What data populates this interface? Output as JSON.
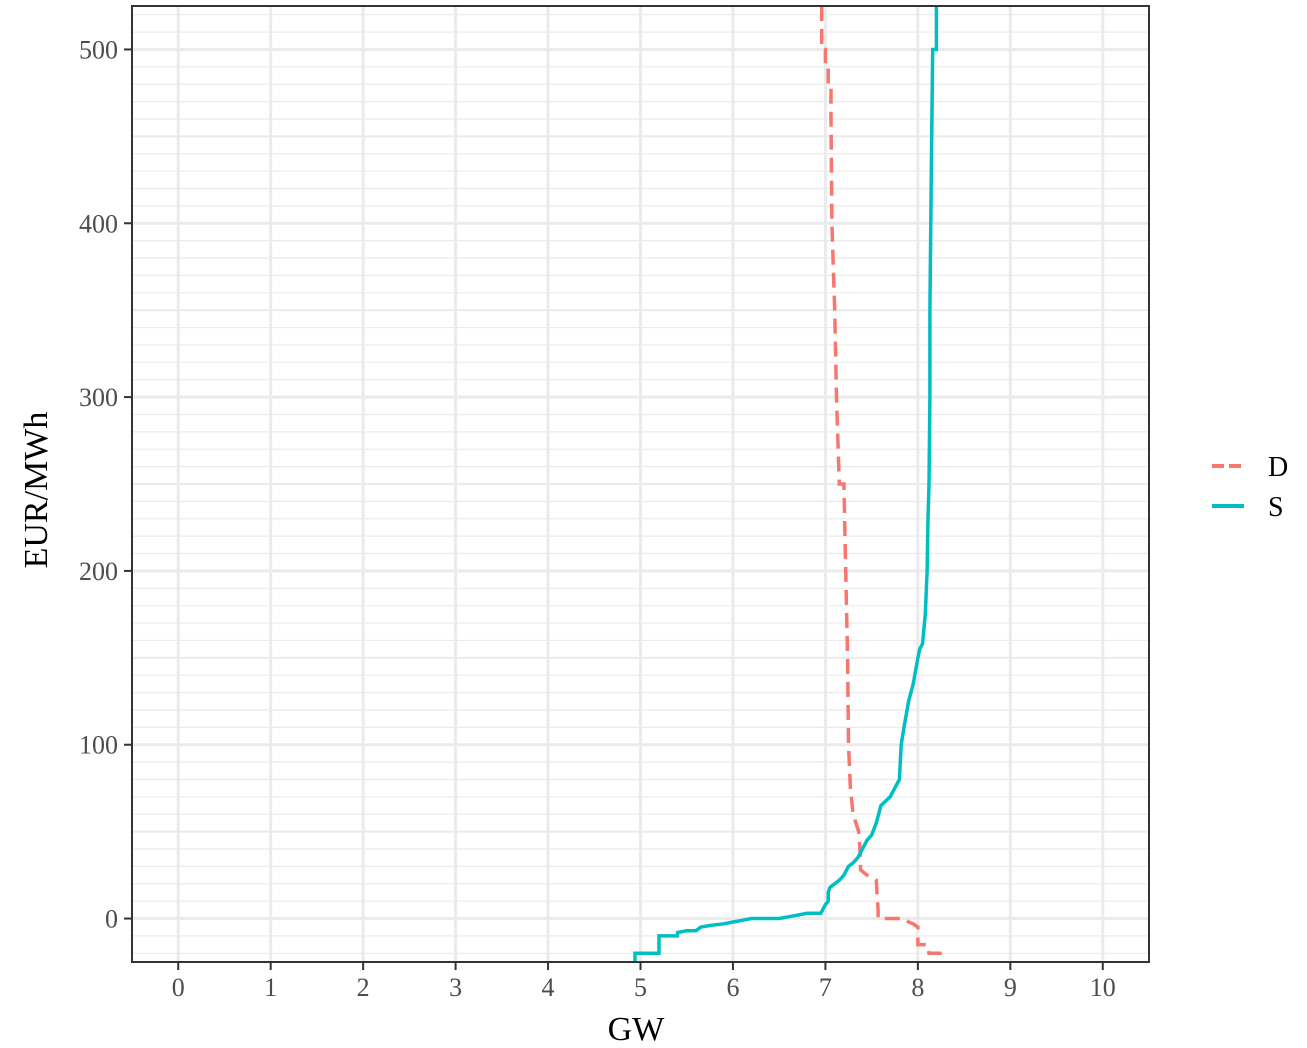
{
  "chart_data": {
    "type": "line",
    "title": "",
    "xlabel": "GW",
    "ylabel": "EUR/MWh",
    "xlim": [
      -0.5,
      10.5
    ],
    "ylim": [
      -25,
      525
    ],
    "x_ticks": [
      0,
      1,
      2,
      3,
      4,
      5,
      6,
      7,
      8,
      9,
      10
    ],
    "y_ticks": [
      0,
      100,
      200,
      300,
      400,
      500
    ],
    "grid": true,
    "legend_position": "right",
    "series": [
      {
        "name": "D",
        "color": "#F8766D",
        "dash": "dashed",
        "points": [
          [
            6.96,
            525
          ],
          [
            6.96,
            500
          ],
          [
            7.0,
            500
          ],
          [
            7.0,
            490
          ],
          [
            7.03,
            490
          ],
          [
            7.03,
            480
          ],
          [
            7.06,
            480
          ],
          [
            7.06,
            460
          ],
          [
            7.07,
            400
          ],
          [
            7.1,
            350
          ],
          [
            7.12,
            300
          ],
          [
            7.15,
            250
          ],
          [
            7.2,
            250
          ],
          [
            7.22,
            200
          ],
          [
            7.24,
            150
          ],
          [
            7.25,
            100
          ],
          [
            7.27,
            75
          ],
          [
            7.3,
            60
          ],
          [
            7.33,
            55
          ],
          [
            7.36,
            50
          ],
          [
            7.38,
            35
          ],
          [
            7.38,
            28
          ],
          [
            7.45,
            25
          ],
          [
            7.55,
            22
          ],
          [
            7.57,
            5
          ],
          [
            7.57,
            0
          ],
          [
            7.85,
            0
          ],
          [
            7.9,
            -2
          ],
          [
            7.95,
            -3
          ],
          [
            8.0,
            -5
          ],
          [
            8.0,
            -15
          ],
          [
            8.1,
            -15
          ],
          [
            8.12,
            -20
          ],
          [
            8.27,
            -20
          ]
        ]
      },
      {
        "name": "S",
        "color": "#00BFC4",
        "dash": "solid",
        "points": [
          [
            4.94,
            -25
          ],
          [
            4.94,
            -20
          ],
          [
            5.2,
            -20
          ],
          [
            5.2,
            -10
          ],
          [
            5.4,
            -10
          ],
          [
            5.4,
            -8
          ],
          [
            5.5,
            -7
          ],
          [
            5.6,
            -7
          ],
          [
            5.65,
            -5
          ],
          [
            5.75,
            -4
          ],
          [
            5.9,
            -3
          ],
          [
            6.0,
            -2
          ],
          [
            6.1,
            -1
          ],
          [
            6.2,
            0
          ],
          [
            6.5,
            0
          ],
          [
            6.6,
            1
          ],
          [
            6.7,
            2
          ],
          [
            6.8,
            3
          ],
          [
            6.95,
            3
          ],
          [
            7.0,
            8
          ],
          [
            7.03,
            10
          ],
          [
            7.03,
            15
          ],
          [
            7.05,
            18
          ],
          [
            7.1,
            20
          ],
          [
            7.15,
            22
          ],
          [
            7.2,
            25
          ],
          [
            7.25,
            30
          ],
          [
            7.3,
            32
          ],
          [
            7.35,
            35
          ],
          [
            7.4,
            40
          ],
          [
            7.45,
            45
          ],
          [
            7.5,
            48
          ],
          [
            7.55,
            55
          ],
          [
            7.6,
            65
          ],
          [
            7.7,
            70
          ],
          [
            7.8,
            80
          ],
          [
            7.82,
            100
          ],
          [
            7.85,
            110
          ],
          [
            7.9,
            125
          ],
          [
            7.95,
            135
          ],
          [
            8.0,
            150
          ],
          [
            8.02,
            155
          ],
          [
            8.05,
            158
          ],
          [
            8.08,
            175
          ],
          [
            8.1,
            200
          ],
          [
            8.11,
            230
          ],
          [
            8.12,
            250
          ],
          [
            8.13,
            300
          ],
          [
            8.13,
            350
          ],
          [
            8.14,
            400
          ],
          [
            8.15,
            450
          ],
          [
            8.16,
            500
          ],
          [
            8.2,
            500
          ],
          [
            8.2,
            525
          ]
        ]
      }
    ]
  }
}
